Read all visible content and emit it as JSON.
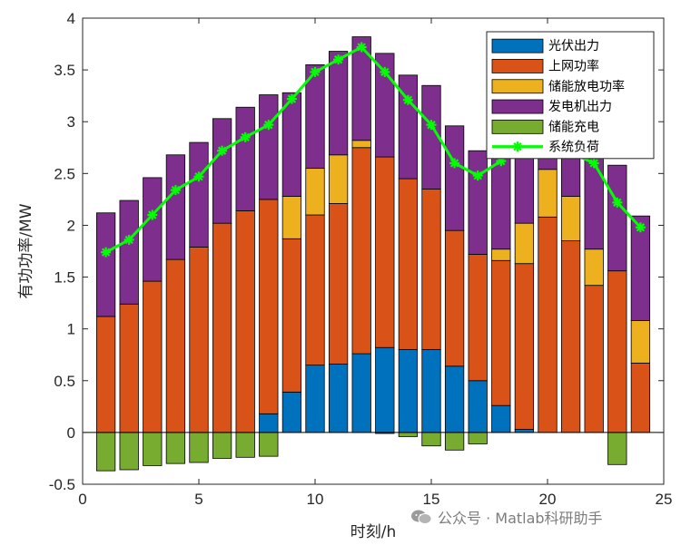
{
  "chart_data": {
    "type": "bar",
    "stacked": true,
    "title": "",
    "xlabel": "时刻/h",
    "ylabel": "有功功率/MW",
    "xlim": [
      0,
      25
    ],
    "ylim": [
      -0.5,
      4
    ],
    "xticks": [
      0,
      5,
      10,
      15,
      20,
      25
    ],
    "yticks": [
      -0.5,
      0,
      0.5,
      1,
      1.5,
      2,
      2.5,
      3,
      3.5,
      4
    ],
    "grid": false,
    "legend_position": "top-right",
    "x": [
      1,
      2,
      3,
      4,
      5,
      6,
      7,
      8,
      9,
      10,
      11,
      12,
      13,
      14,
      15,
      16,
      17,
      18,
      19,
      20,
      21,
      22,
      23,
      24
    ],
    "series": [
      {
        "name": "光伏出力",
        "kind": "bar",
        "color": "#0072BD",
        "values": [
          0,
          0,
          0,
          0,
          0,
          0,
          0,
          0.18,
          0.39,
          0.65,
          0.66,
          0.76,
          0.82,
          0.8,
          0.8,
          0.64,
          0.5,
          0.26,
          0.03,
          0,
          0,
          0,
          0,
          0
        ]
      },
      {
        "name": "上网功率",
        "kind": "bar",
        "color": "#D95319",
        "values": [
          1.12,
          1.24,
          1.46,
          1.67,
          1.79,
          2.02,
          2.14,
          2.07,
          1.48,
          1.45,
          1.55,
          1.99,
          1.84,
          1.65,
          1.55,
          1.31,
          1.22,
          1.4,
          1.6,
          2.08,
          1.85,
          1.42,
          1.56,
          0.67
        ]
      },
      {
        "name": "储能放电功率",
        "kind": "bar",
        "color": "#EDB120",
        "values": [
          0,
          0,
          0,
          0,
          0,
          0,
          0,
          0,
          0.41,
          0.45,
          0.47,
          0.07,
          0,
          0,
          0,
          0,
          0,
          0.11,
          0.39,
          0.46,
          0.43,
          0.35,
          0,
          0.41
        ]
      },
      {
        "name": "发电机出力",
        "kind": "bar",
        "color": "#7E2F8E",
        "values": [
          1.0,
          1.0,
          1.0,
          1.01,
          1.01,
          1.01,
          1.0,
          1.01,
          1.0,
          1.0,
          1.0,
          1.0,
          1.0,
          1.0,
          1.0,
          1.01,
          1.0,
          1.01,
          0.97,
          0.55,
          0.63,
          1.0,
          1.02,
          1.01
        ]
      },
      {
        "name": "储能充电",
        "kind": "bar",
        "color": "#77AC30",
        "values": [
          -0.37,
          -0.36,
          -0.32,
          -0.3,
          -0.29,
          -0.25,
          -0.24,
          -0.23,
          0,
          0,
          0,
          0,
          -0.01,
          -0.04,
          -0.13,
          -0.17,
          -0.11,
          0,
          0,
          0,
          0,
          0,
          -0.31,
          0
        ]
      },
      {
        "name": "系统负荷",
        "kind": "line",
        "color": "#00FF00",
        "values": [
          1.74,
          1.86,
          2.1,
          2.34,
          2.47,
          2.72,
          2.85,
          2.97,
          3.22,
          3.48,
          3.6,
          3.72,
          3.48,
          3.21,
          2.97,
          2.6,
          2.48,
          2.62,
          2.9,
          2.95,
          2.7,
          2.6,
          2.22,
          1.98
        ]
      }
    ]
  },
  "watermark": {
    "text": "公众号 · Matlab科研助手"
  }
}
